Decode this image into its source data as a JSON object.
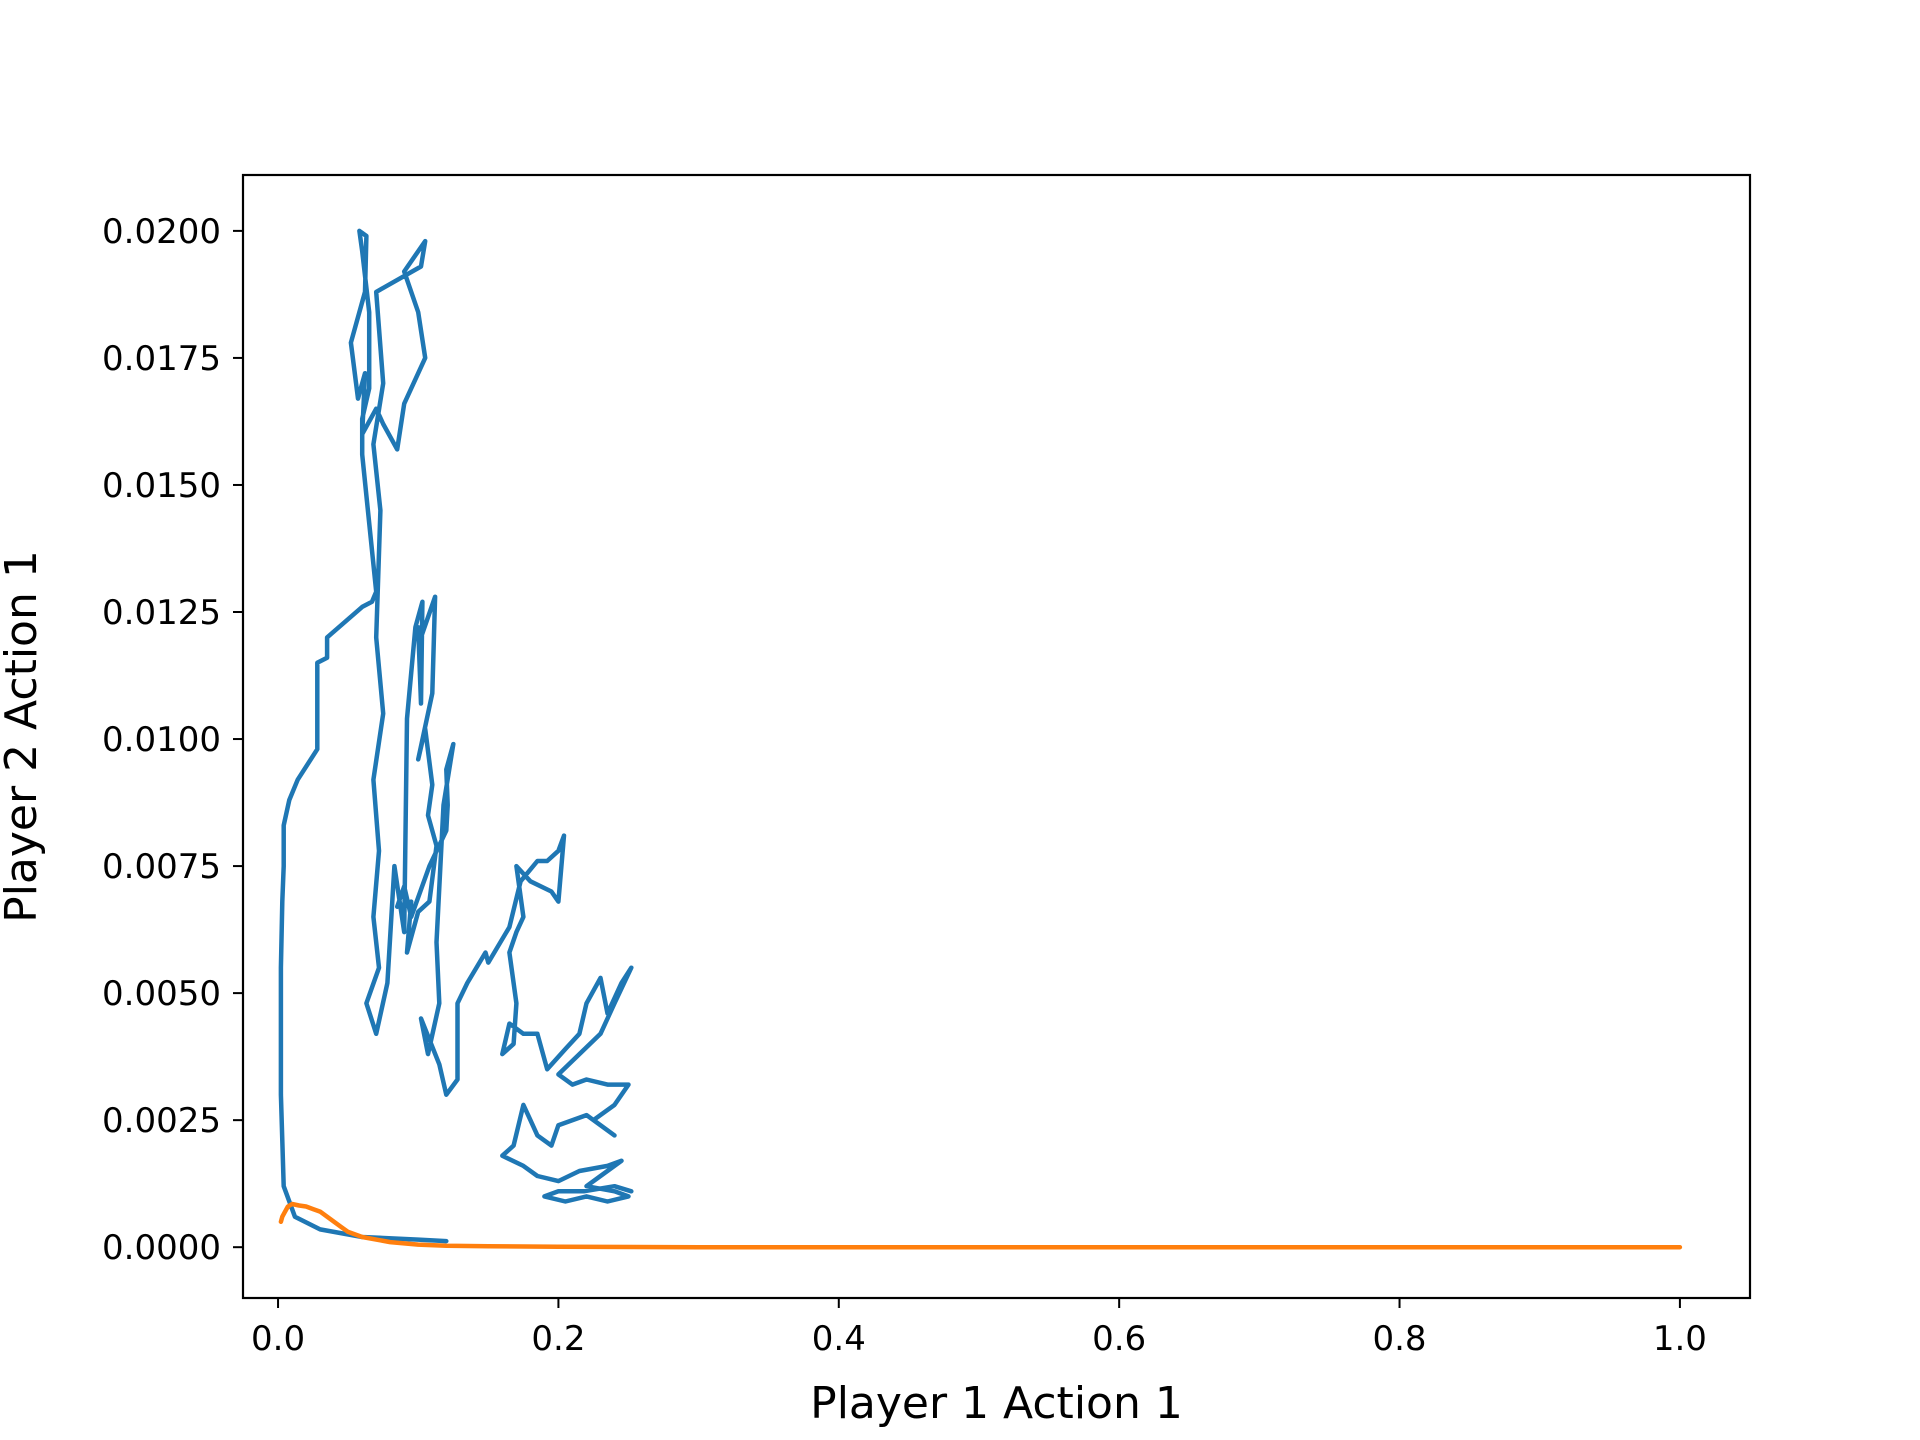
{
  "chart_data": {
    "type": "line",
    "title": "",
    "xlabel": "Player 1 Action 1",
    "ylabel": "Player 2 Action 1",
    "xlim": [
      -0.025,
      1.05
    ],
    "ylim": [
      -0.001,
      0.0211
    ],
    "x_ticks": [
      0.0,
      0.2,
      0.4,
      0.6,
      0.8,
      1.0
    ],
    "x_tick_labels": [
      "0.0",
      "0.2",
      "0.4",
      "0.6",
      "0.8",
      "1.0"
    ],
    "y_ticks": [
      0.0,
      0.0025,
      0.005,
      0.0075,
      0.01,
      0.0125,
      0.015,
      0.0175,
      0.02
    ],
    "y_tick_labels": [
      "0.0000",
      "0.0025",
      "0.0050",
      "0.0075",
      "0.0100",
      "0.0125",
      "0.0150",
      "0.0175",
      "0.0200"
    ],
    "grid": false,
    "legend": "none",
    "series": [
      {
        "color": "#1f77b4",
        "points": [
          [
            0.12,
            0.00012
          ],
          [
            0.1,
            0.00015
          ],
          [
            0.06,
            0.0002
          ],
          [
            0.03,
            0.00035
          ],
          [
            0.012,
            0.0006
          ],
          [
            0.004,
            0.0012
          ],
          [
            0.002,
            0.003
          ],
          [
            0.002,
            0.0055
          ],
          [
            0.003,
            0.0068
          ],
          [
            0.004,
            0.0075
          ],
          [
            0.004,
            0.0083
          ],
          [
            0.008,
            0.0088
          ],
          [
            0.014,
            0.0092
          ],
          [
            0.028,
            0.0098
          ],
          [
            0.028,
            0.0115
          ],
          [
            0.035,
            0.0116
          ],
          [
            0.035,
            0.012
          ],
          [
            0.06,
            0.0126
          ],
          [
            0.067,
            0.0127
          ],
          [
            0.07,
            0.0129
          ],
          [
            0.06,
            0.0156
          ],
          [
            0.06,
            0.0163
          ],
          [
            0.065,
            0.0169
          ],
          [
            0.065,
            0.0184
          ],
          [
            0.06,
            0.0196
          ],
          [
            0.058,
            0.02
          ],
          [
            0.063,
            0.0199
          ],
          [
            0.062,
            0.0188
          ],
          [
            0.052,
            0.0178
          ],
          [
            0.057,
            0.0167
          ],
          [
            0.062,
            0.0172
          ],
          [
            0.06,
            0.016
          ],
          [
            0.07,
            0.0165
          ],
          [
            0.075,
            0.0162
          ],
          [
            0.085,
            0.0157
          ],
          [
            0.09,
            0.0166
          ],
          [
            0.1,
            0.0172
          ],
          [
            0.105,
            0.0175
          ],
          [
            0.1,
            0.0184
          ],
          [
            0.09,
            0.0192
          ],
          [
            0.105,
            0.0198
          ],
          [
            0.102,
            0.0193
          ],
          [
            0.07,
            0.0188
          ],
          [
            0.075,
            0.017
          ],
          [
            0.068,
            0.0158
          ],
          [
            0.073,
            0.0145
          ],
          [
            0.07,
            0.012
          ],
          [
            0.075,
            0.0105
          ],
          [
            0.068,
            0.0092
          ],
          [
            0.072,
            0.0078
          ],
          [
            0.068,
            0.0065
          ],
          [
            0.072,
            0.0055
          ],
          [
            0.063,
            0.0048
          ],
          [
            0.07,
            0.0042
          ],
          [
            0.078,
            0.0052
          ],
          [
            0.083,
            0.0075
          ],
          [
            0.09,
            0.0062
          ],
          [
            0.092,
            0.0104
          ],
          [
            0.098,
            0.0122
          ],
          [
            0.103,
            0.0127
          ],
          [
            0.102,
            0.0107
          ],
          [
            0.1,
            0.0122
          ],
          [
            0.102,
            0.012
          ],
          [
            0.112,
            0.0128
          ],
          [
            0.11,
            0.0109
          ],
          [
            0.1,
            0.0096
          ],
          [
            0.105,
            0.0102
          ],
          [
            0.11,
            0.0091
          ],
          [
            0.107,
            0.0085
          ],
          [
            0.113,
            0.0079
          ],
          [
            0.108,
            0.0068
          ],
          [
            0.1,
            0.0066
          ],
          [
            0.092,
            0.0058
          ],
          [
            0.095,
            0.0068
          ],
          [
            0.085,
            0.0067
          ],
          [
            0.09,
            0.0071
          ],
          [
            0.095,
            0.0065
          ],
          [
            0.108,
            0.0075
          ],
          [
            0.12,
            0.0082
          ],
          [
            0.121,
            0.0087
          ],
          [
            0.12,
            0.0094
          ],
          [
            0.125,
            0.0099
          ],
          [
            0.118,
            0.0087
          ],
          [
            0.113,
            0.006
          ],
          [
            0.115,
            0.0048
          ],
          [
            0.107,
            0.0038
          ],
          [
            0.102,
            0.0045
          ],
          [
            0.115,
            0.0036
          ],
          [
            0.12,
            0.003
          ],
          [
            0.128,
            0.0033
          ],
          [
            0.128,
            0.0048
          ],
          [
            0.135,
            0.0052
          ],
          [
            0.148,
            0.0058
          ],
          [
            0.15,
            0.0056
          ],
          [
            0.165,
            0.0063
          ],
          [
            0.173,
            0.0072
          ],
          [
            0.185,
            0.0076
          ],
          [
            0.192,
            0.0076
          ],
          [
            0.2,
            0.0078
          ],
          [
            0.204,
            0.0081
          ],
          [
            0.2,
            0.0068
          ],
          [
            0.195,
            0.007
          ],
          [
            0.18,
            0.0072
          ],
          [
            0.17,
            0.0075
          ],
          [
            0.175,
            0.0065
          ],
          [
            0.17,
            0.0062
          ],
          [
            0.165,
            0.0058
          ],
          [
            0.17,
            0.0048
          ],
          [
            0.168,
            0.004
          ],
          [
            0.16,
            0.0038
          ],
          [
            0.165,
            0.0044
          ],
          [
            0.175,
            0.0042
          ],
          [
            0.185,
            0.0042
          ],
          [
            0.192,
            0.0035
          ],
          [
            0.205,
            0.0039
          ],
          [
            0.215,
            0.0042
          ],
          [
            0.22,
            0.0048
          ],
          [
            0.23,
            0.0053
          ],
          [
            0.235,
            0.0046
          ],
          [
            0.245,
            0.0052
          ],
          [
            0.252,
            0.0055
          ],
          [
            0.24,
            0.0048
          ],
          [
            0.23,
            0.0042
          ],
          [
            0.215,
            0.0038
          ],
          [
            0.2,
            0.0034
          ],
          [
            0.21,
            0.0032
          ],
          [
            0.22,
            0.0033
          ],
          [
            0.235,
            0.0032
          ],
          [
            0.25,
            0.0032
          ],
          [
            0.24,
            0.0028
          ],
          [
            0.225,
            0.0025
          ],
          [
            0.24,
            0.0022
          ],
          [
            0.22,
            0.0026
          ],
          [
            0.2,
            0.0024
          ],
          [
            0.195,
            0.002
          ],
          [
            0.185,
            0.0022
          ],
          [
            0.18,
            0.0025
          ],
          [
            0.175,
            0.0028
          ],
          [
            0.168,
            0.002
          ],
          [
            0.16,
            0.0018
          ],
          [
            0.175,
            0.0016
          ],
          [
            0.185,
            0.0014
          ],
          [
            0.2,
            0.0013
          ],
          [
            0.215,
            0.0015
          ],
          [
            0.235,
            0.0016
          ],
          [
            0.245,
            0.0017
          ],
          [
            0.23,
            0.0014
          ],
          [
            0.22,
            0.0012
          ],
          [
            0.24,
            0.0011
          ],
          [
            0.25,
            0.001
          ],
          [
            0.235,
            0.0009
          ],
          [
            0.22,
            0.001
          ],
          [
            0.205,
            0.0009
          ],
          [
            0.19,
            0.001
          ],
          [
            0.2,
            0.0011
          ],
          [
            0.218,
            0.0011
          ],
          [
            0.24,
            0.0012
          ],
          [
            0.252,
            0.0011
          ]
        ]
      },
      {
        "color": "#ff7f0e",
        "points": [
          [
            1.0,
            0.0
          ],
          [
            0.9,
            0.0
          ],
          [
            0.7,
            0.0
          ],
          [
            0.5,
            0.0
          ],
          [
            0.3,
            0.0
          ],
          [
            0.2,
            1e-05
          ],
          [
            0.15,
            2e-05
          ],
          [
            0.12,
            3e-05
          ],
          [
            0.1,
            5e-05
          ],
          [
            0.08,
            0.0001
          ],
          [
            0.06,
            0.0002
          ],
          [
            0.05,
            0.0003
          ],
          [
            0.045,
            0.0004
          ],
          [
            0.04,
            0.0005
          ],
          [
            0.035,
            0.0006
          ],
          [
            0.03,
            0.0007
          ],
          [
            0.025,
            0.00075
          ],
          [
            0.02,
            0.0008
          ],
          [
            0.015,
            0.00082
          ],
          [
            0.01,
            0.00085
          ],
          [
            0.007,
            0.0008
          ],
          [
            0.005,
            0.0007
          ],
          [
            0.003,
            0.0006
          ],
          [
            0.002,
            0.0005
          ]
        ]
      }
    ]
  }
}
